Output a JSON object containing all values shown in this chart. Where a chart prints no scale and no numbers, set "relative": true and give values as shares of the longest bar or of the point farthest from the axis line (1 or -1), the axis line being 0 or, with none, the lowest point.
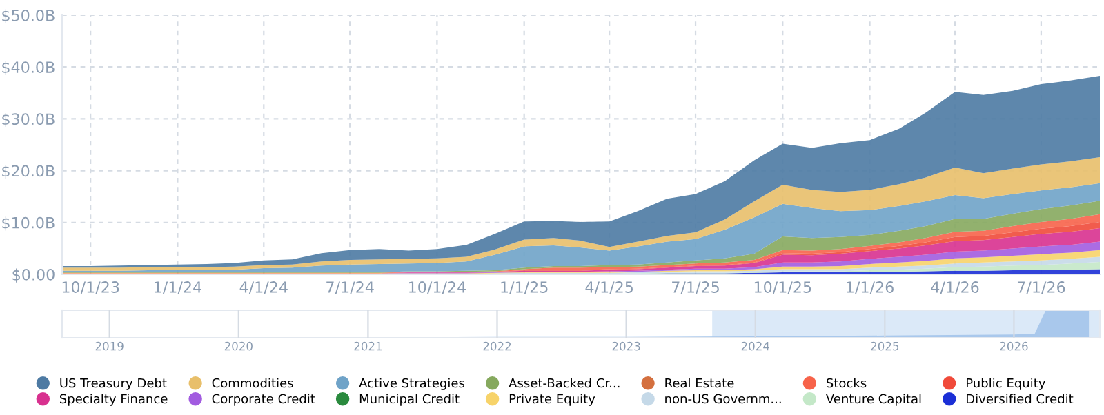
{
  "chart_data": [
    {
      "type": "area",
      "stacked": true,
      "grid": true,
      "legend": "bottom",
      "x": [
        "2023-09",
        "2023-10",
        "2023-11",
        "2023-12",
        "2024-01",
        "2024-02",
        "2024-03",
        "2024-04",
        "2024-05",
        "2024-06",
        "2024-07",
        "2024-08",
        "2024-09",
        "2024-10",
        "2024-11",
        "2024-12",
        "2025-01",
        "2025-02",
        "2025-03",
        "2025-04",
        "2025-05",
        "2025-06",
        "2025-07",
        "2025-08",
        "2025-09",
        "2025-10",
        "2025-11",
        "2025-12",
        "2026-01",
        "2026-02",
        "2026-03",
        "2026-04",
        "2026-05",
        "2026-06",
        "2026-07",
        "2026-08",
        "2026-09"
      ],
      "xlim": [
        "2023-09-01",
        "2026-09-01"
      ],
      "xticks": [
        {
          "value": "2023-10-01",
          "label": "10/1/23"
        },
        {
          "value": "2024-01-01",
          "label": "1/1/24"
        },
        {
          "value": "2024-04-01",
          "label": "4/1/24"
        },
        {
          "value": "2024-07-01",
          "label": "7/1/24"
        },
        {
          "value": "2024-10-01",
          "label": "10/1/24"
        },
        {
          "value": "2025-01-01",
          "label": "1/1/25"
        },
        {
          "value": "2025-04-01",
          "label": "4/1/25"
        },
        {
          "value": "2025-07-01",
          "label": "7/1/25"
        },
        {
          "value": "2025-10-01",
          "label": "10/1/25"
        },
        {
          "value": "2026-01-01",
          "label": "1/1/26"
        },
        {
          "value": "2026-04-01",
          "label": "4/1/26"
        },
        {
          "value": "2026-07-01",
          "label": "7/1/26"
        }
      ],
      "ylim": [
        0,
        50
      ],
      "yticks": [
        {
          "value": 0,
          "label": "$0.00"
        },
        {
          "value": 10,
          "label": "$10.0B"
        },
        {
          "value": 20,
          "label": "$20.0B"
        },
        {
          "value": 30,
          "label": "$30.0B"
        },
        {
          "value": 40,
          "label": "$40.0B"
        },
        {
          "value": 50,
          "label": "$50.0B"
        }
      ],
      "series": [
        {
          "name": "Diversified Credit",
          "color": "#1b2fd6",
          "values": [
            0,
            0,
            0,
            0,
            0,
            0,
            0,
            0,
            0,
            0,
            0,
            0,
            0,
            0,
            0,
            0.1,
            0.1,
            0.1,
            0.1,
            0.1,
            0.1,
            0.2,
            0.2,
            0.2,
            0.3,
            0.4,
            0.4,
            0.4,
            0.5,
            0.5,
            0.6,
            0.7,
            0.7,
            0.8,
            0.8,
            0.9,
            1.0
          ]
        },
        {
          "name": "Venture Capital",
          "color": "#c4e8c8",
          "values": [
            0,
            0,
            0,
            0,
            0,
            0,
            0,
            0,
            0,
            0,
            0,
            0,
            0,
            0,
            0,
            0,
            0,
            0,
            0,
            0,
            0.1,
            0.1,
            0.1,
            0.1,
            0.1,
            0.2,
            0.2,
            0.2,
            0.3,
            0.4,
            0.5,
            0.7,
            0.8,
            0.9,
            1.0,
            1.2,
            1.4
          ]
        },
        {
          "name": "non-US Governm...",
          "color": "#c5d9e8",
          "values": [
            0.1,
            0.1,
            0.1,
            0.1,
            0.1,
            0.1,
            0.1,
            0.1,
            0.1,
            0.1,
            0.1,
            0.1,
            0.1,
            0.1,
            0.1,
            0.1,
            0.2,
            0.2,
            0.2,
            0.2,
            0.2,
            0.2,
            0.3,
            0.3,
            0.3,
            0.4,
            0.4,
            0.4,
            0.5,
            0.6,
            0.6,
            0.7,
            0.8,
            0.8,
            0.9,
            0.9,
            1.0
          ]
        },
        {
          "name": "Private Equity",
          "color": "#f7d36a",
          "values": [
            0.1,
            0.1,
            0.1,
            0.1,
            0.1,
            0.1,
            0.1,
            0.1,
            0.1,
            0.1,
            0.1,
            0.1,
            0.1,
            0.1,
            0.1,
            0.1,
            0.1,
            0.1,
            0.1,
            0.1,
            0.1,
            0.2,
            0.2,
            0.2,
            0.3,
            0.5,
            0.5,
            0.6,
            0.7,
            0.8,
            0.9,
            1.0,
            1.0,
            1.1,
            1.2,
            1.2,
            1.3
          ]
        },
        {
          "name": "Municipal Credit",
          "color": "#2a8a3e",
          "values": [
            null,
            null,
            null,
            null,
            null,
            null,
            null,
            null,
            null,
            null,
            null,
            null,
            null,
            null,
            null,
            null,
            null,
            null,
            null,
            null,
            null,
            null,
            null,
            null,
            null,
            null,
            null,
            null,
            null,
            null,
            null,
            null,
            null,
            null,
            null,
            null,
            null
          ]
        },
        {
          "name": "Corporate Credit",
          "color": "#a25ce0",
          "values": [
            0,
            0,
            0,
            0,
            0,
            0,
            0,
            0,
            0,
            0,
            0,
            0,
            0.1,
            0.1,
            0.1,
            0.1,
            0.1,
            0.1,
            0.1,
            0.2,
            0.2,
            0.2,
            0.3,
            0.3,
            0.4,
            0.8,
            0.8,
            0.9,
            1.0,
            1.1,
            1.2,
            1.3,
            1.3,
            1.4,
            1.5,
            1.5,
            1.6
          ]
        },
        {
          "name": "Specialty Finance",
          "color": "#d8318f",
          "values": [
            0,
            0,
            0,
            0,
            0,
            0,
            0,
            0,
            0,
            0,
            0,
            0,
            0.1,
            0.1,
            0.1,
            0.1,
            0.2,
            0.2,
            0.2,
            0.3,
            0.3,
            0.4,
            0.5,
            0.6,
            0.8,
            1.5,
            1.4,
            1.5,
            1.5,
            1.6,
            1.8,
            2.0,
            2.0,
            2.2,
            2.4,
            2.5,
            2.6
          ]
        },
        {
          "name": "Public Equity",
          "color": "#f04a3a",
          "values": [
            0,
            0,
            0,
            0,
            0,
            0,
            0,
            0,
            0,
            0,
            0,
            0,
            0,
            0,
            0,
            0,
            0.1,
            0.1,
            0.1,
            0.1,
            0.1,
            0.1,
            0.1,
            0.1,
            0.1,
            0.3,
            0.3,
            0.3,
            0.4,
            0.5,
            0.6,
            0.8,
            0.8,
            0.9,
            1.0,
            1.1,
            1.2
          ]
        },
        {
          "name": "Stocks",
          "color": "#f7634a",
          "values": [
            0.1,
            0.1,
            0.1,
            0.1,
            0.1,
            0.1,
            0.1,
            0.1,
            0.1,
            0.1,
            0.1,
            0.1,
            0.1,
            0.1,
            0.1,
            0.1,
            0.2,
            0.5,
            0.5,
            0.4,
            0.4,
            0.4,
            0.4,
            0.5,
            0.5,
            0.6,
            0.6,
            0.6,
            0.6,
            0.7,
            0.8,
            1.0,
            1.0,
            1.2,
            1.3,
            1.4,
            1.5
          ]
        },
        {
          "name": "Real Estate",
          "color": "#d4703f",
          "values": [
            null,
            null,
            null,
            null,
            null,
            null,
            null,
            null,
            null,
            null,
            null,
            null,
            null,
            null,
            null,
            null,
            null,
            null,
            null,
            null,
            null,
            null,
            null,
            null,
            null,
            null,
            null,
            null,
            null,
            null,
            null,
            null,
            null,
            null,
            null,
            null,
            null
          ]
        },
        {
          "name": "Asset-Backed Cr...",
          "color": "#86a95e",
          "values": [
            0.1,
            0.1,
            0.1,
            0.1,
            0.1,
            0.1,
            0.1,
            0.1,
            0.1,
            0.1,
            0.1,
            0.1,
            0.1,
            0.1,
            0.2,
            0.2,
            0.3,
            0.3,
            0.3,
            0.4,
            0.4,
            0.5,
            0.6,
            0.8,
            1.2,
            2.6,
            2.4,
            2.3,
            2.1,
            2.2,
            2.3,
            2.5,
            2.3,
            2.4,
            2.5,
            2.6,
            2.6
          ]
        },
        {
          "name": "Active Strategies",
          "color": "#6fa3c8",
          "values": [
            0.3,
            0.3,
            0.3,
            0.4,
            0.4,
            0.4,
            0.5,
            0.8,
            0.9,
            1.3,
            1.5,
            1.6,
            1.5,
            1.6,
            1.8,
            3.0,
            4.1,
            4.0,
            3.6,
            2.8,
            3.5,
            4.0,
            4.1,
            5.5,
            7.0,
            6.3,
            5.8,
            5.0,
            4.8,
            4.8,
            4.8,
            4.6,
            4.0,
            3.8,
            3.6,
            3.5,
            3.4
          ]
        },
        {
          "name": "Commodities",
          "color": "#e8bf6a",
          "values": [
            0.6,
            0.6,
            0.6,
            0.6,
            0.6,
            0.6,
            0.6,
            0.6,
            0.6,
            0.8,
            0.9,
            0.9,
            0.9,
            0.9,
            0.9,
            1.0,
            1.3,
            1.4,
            1.3,
            0.7,
            0.9,
            1.1,
            1.3,
            2.0,
            3.1,
            3.7,
            3.5,
            3.7,
            3.9,
            4.2,
            4.6,
            5.3,
            4.8,
            4.9,
            5.0,
            5.0,
            5.0
          ]
        },
        {
          "name": "US Treasury Debt",
          "color": "#4d7aa3",
          "values": [
            0.3,
            0.3,
            0.4,
            0.4,
            0.5,
            0.6,
            0.7,
            0.9,
            1.0,
            1.6,
            1.9,
            2.0,
            1.6,
            1.8,
            2.3,
            3.0,
            3.5,
            3.3,
            3.6,
            4.9,
            5.9,
            7.2,
            7.4,
            7.4,
            7.9,
            7.9,
            8.1,
            9.4,
            9.6,
            10.7,
            12.5,
            14.6,
            15.1,
            15.0,
            15.5,
            15.6,
            15.7
          ]
        }
      ]
    },
    {
      "type": "area",
      "relative": true,
      "grid": "x",
      "tick_labels": "x",
      "x": [
        "2018-09",
        "2021-01",
        "2022-01",
        "2023-01",
        "2024-01",
        "2025-01",
        "2026-01",
        "2026-03",
        "2026-04",
        "2026-08"
      ],
      "xlim": [
        "2018-08-20",
        "2026-09-01"
      ],
      "xticks": [
        {
          "value": "2019-01-01",
          "label": "2019"
        },
        {
          "value": "2020-01-01",
          "label": "2020"
        },
        {
          "value": "2021-01-01",
          "label": "2021"
        },
        {
          "value": "2022-01-01",
          "label": "2022"
        },
        {
          "value": "2023-01-01",
          "label": "2023"
        },
        {
          "value": "2024-01-01",
          "label": "2024"
        },
        {
          "value": "2025-01-01",
          "label": "2025"
        },
        {
          "value": "2026-01-01",
          "label": "2026"
        }
      ],
      "bands": [
        {
          "axis": "x",
          "from": "2023-09-01",
          "to": "2026-09-01",
          "color": "#dbe9f8"
        }
      ],
      "series": [
        {
          "color": "#a9c8ec",
          "values": [
            0,
            0.01,
            0.03,
            0.03,
            0.05,
            0.08,
            0.12,
            0.15,
            1,
            1
          ]
        }
      ]
    }
  ]
}
